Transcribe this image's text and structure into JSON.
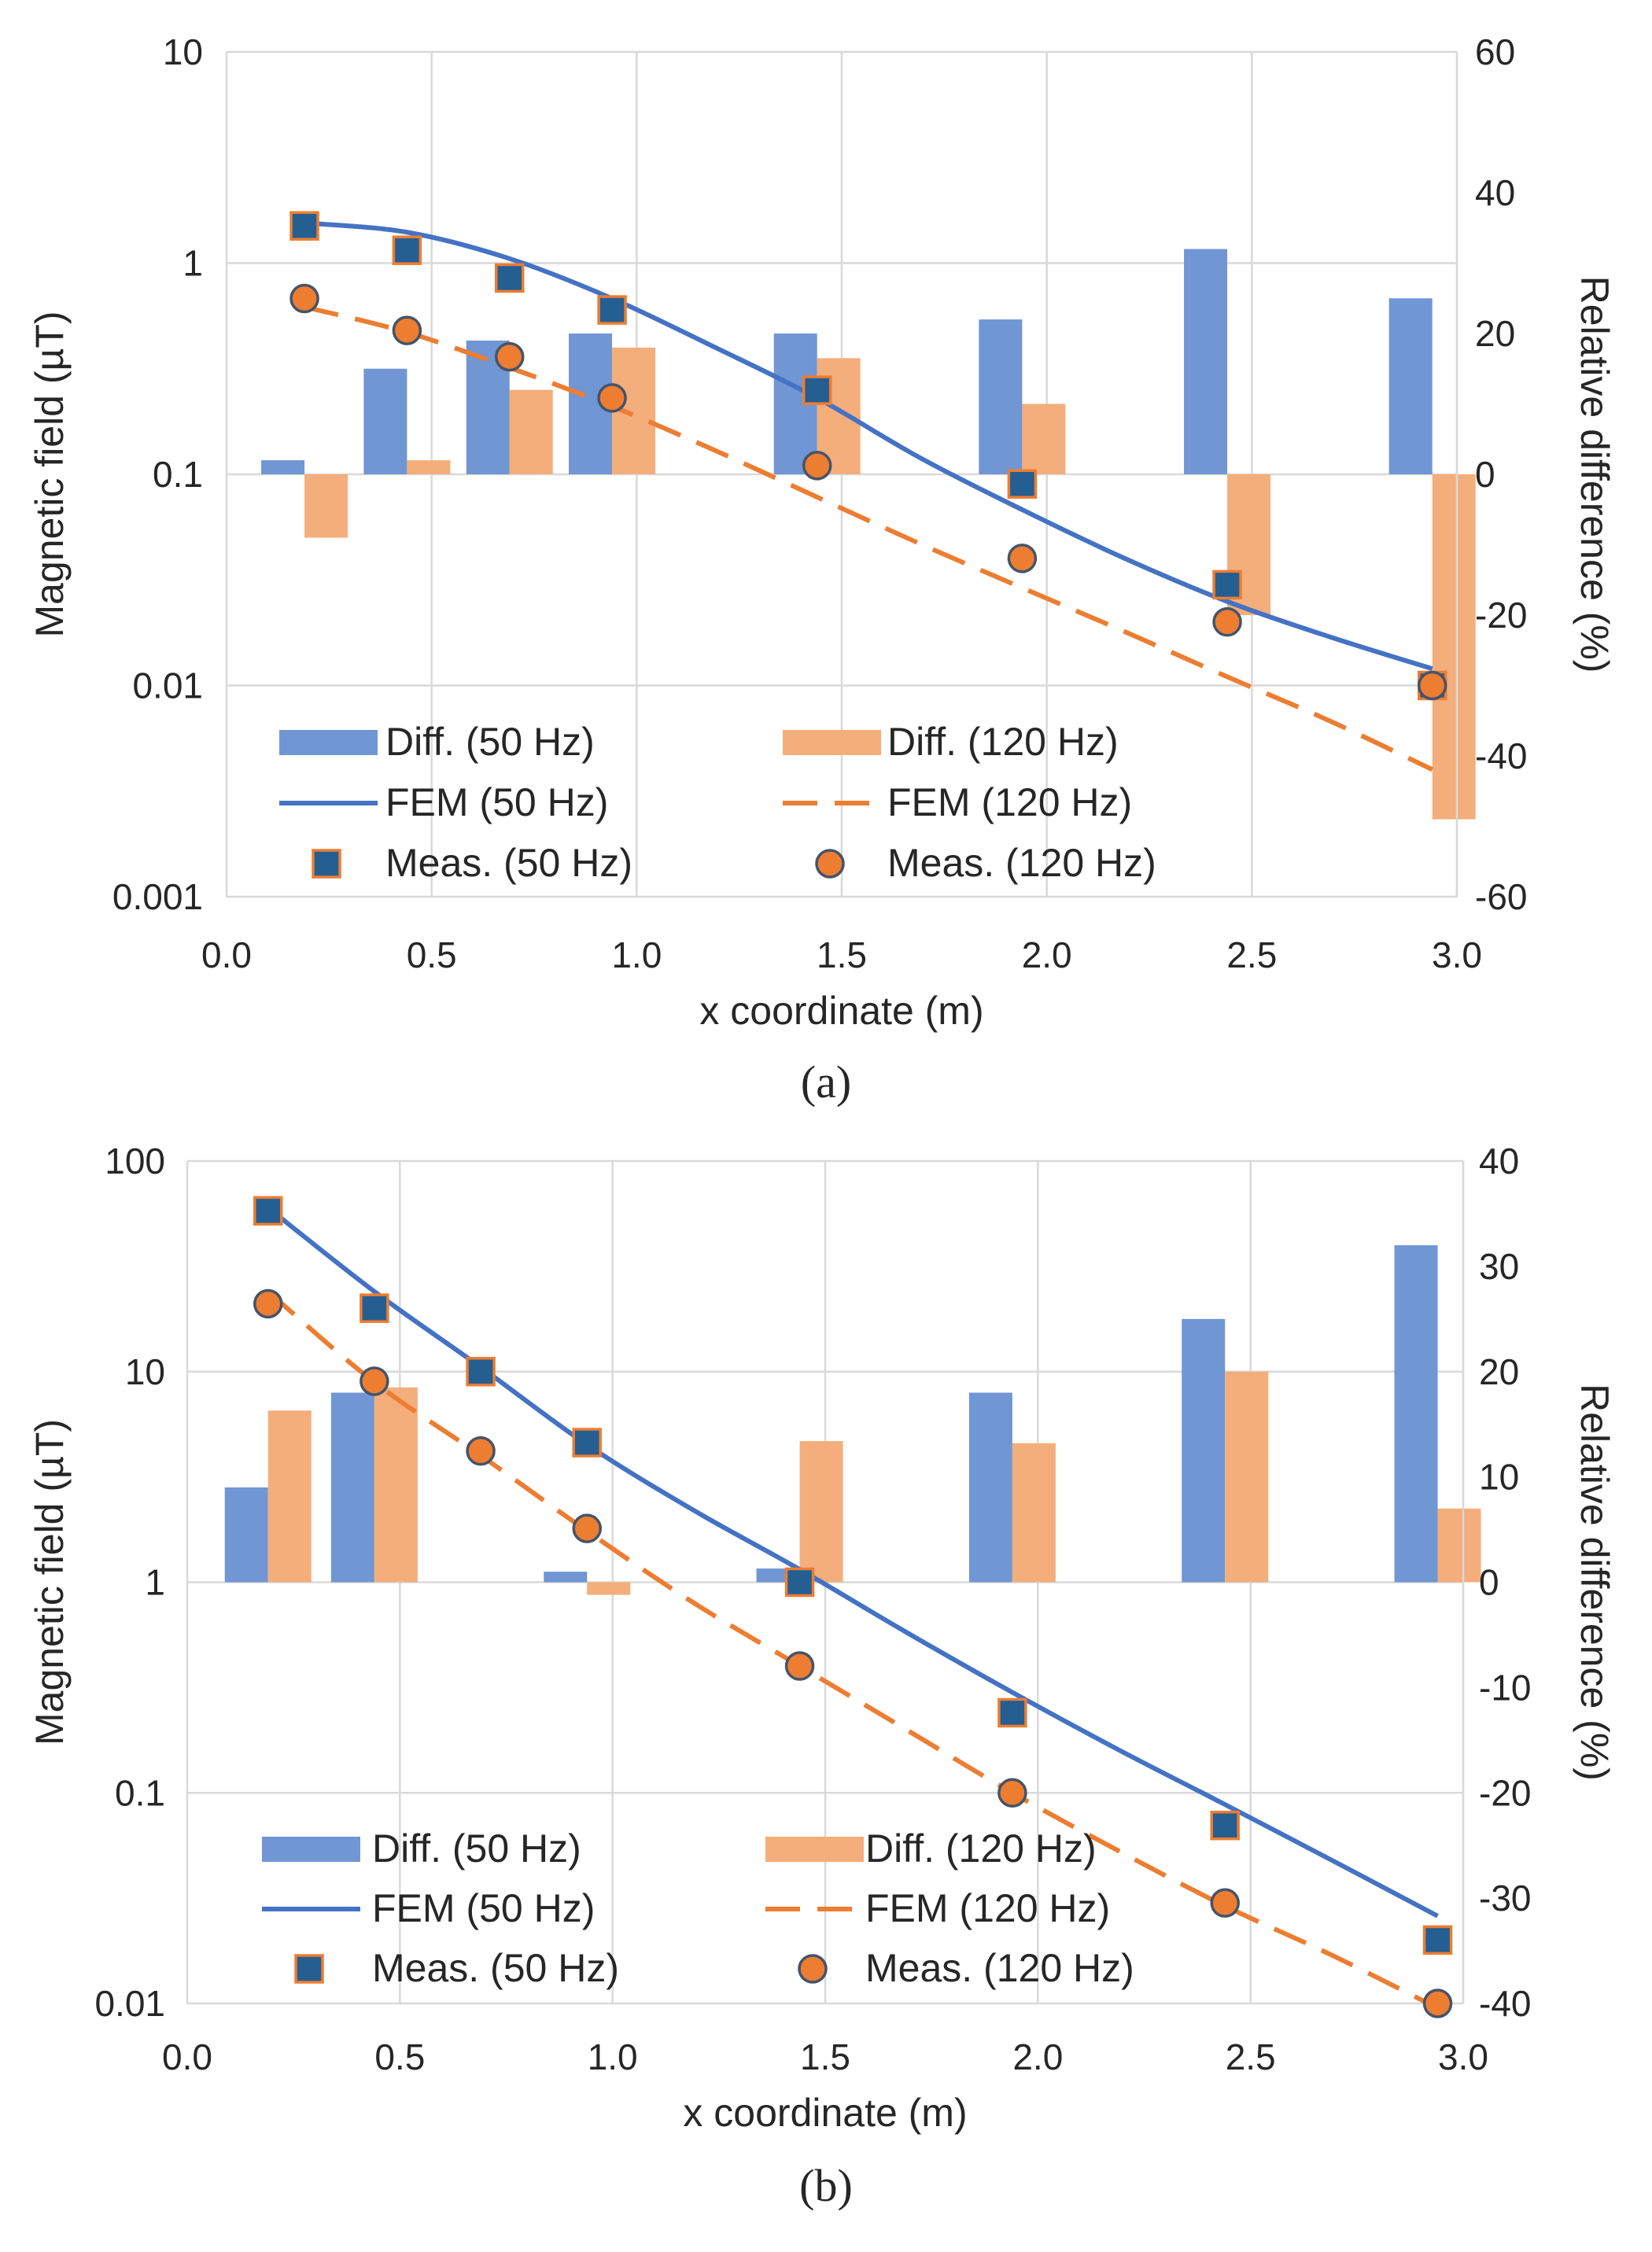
{
  "colors": {
    "diff50": "#7096D4",
    "diff120": "#F4AE7B",
    "fem50": "#4472C4",
    "fem120": "#ED7D31",
    "meas50_fill": "#255E91",
    "meas50_edge": "#ED7D31",
    "meas120_fill": "#ED7D31",
    "meas120_edge": "#44546A"
  },
  "chart_data": [
    {
      "id": "a",
      "type": "bar+line+scatter",
      "caption": "(a)",
      "xlabel": "x coordinate (m)",
      "ylabel_left": "Magnetic field (µT)",
      "ylabel_right": "Relative difference (%)",
      "xlim": [
        0.0,
        3.0
      ],
      "x_ticks": [
        "0.0",
        "0.5",
        "1.0",
        "1.5",
        "2.0",
        "2.5",
        "3.0"
      ],
      "y_left_scale": "log",
      "y_left_range": [
        0.001,
        10
      ],
      "y_left_ticks": [
        "0.001",
        "0.01",
        "0.1",
        "1",
        "10"
      ],
      "y_right_range": [
        -60,
        60
      ],
      "y_right_ticks": [
        "-60",
        "-40",
        "-20",
        "0",
        "20",
        "40",
        "60"
      ],
      "grid": true,
      "legend_position": "bottom-left",
      "legend": [
        "Diff. (50 Hz)",
        "Diff. (120 Hz)",
        "FEM (50 Hz)",
        "FEM (120 Hz)",
        "Meas. (50 Hz)",
        "Meas. (120 Hz)"
      ],
      "series": [
        {
          "name": "Diff. (50 Hz)",
          "kind": "bar",
          "axis": "right",
          "x": [
            0.19,
            0.44,
            0.69,
            0.94,
            1.44,
            1.94,
            2.44,
            2.94
          ],
          "values": [
            2,
            15,
            19,
            20,
            20,
            22,
            32,
            25
          ]
        },
        {
          "name": "Diff. (120 Hz)",
          "kind": "bar",
          "axis": "right",
          "x": [
            0.19,
            0.44,
            0.69,
            0.94,
            1.44,
            1.94,
            2.44,
            2.94
          ],
          "values": [
            -9,
            2,
            12,
            18,
            16.5,
            10,
            -20,
            -49
          ]
        },
        {
          "name": "FEM (50 Hz)",
          "kind": "line",
          "axis": "left",
          "x": [
            0.19,
            0.44,
            0.69,
            0.94,
            1.19,
            1.44,
            1.69,
            1.94,
            2.19,
            2.44,
            2.69,
            2.94
          ],
          "values": [
            1.55,
            1.4,
            1.05,
            0.68,
            0.4,
            0.23,
            0.12,
            0.068,
            0.04,
            0.025,
            0.017,
            0.012
          ]
        },
        {
          "name": "FEM (120 Hz)",
          "kind": "line",
          "axis": "left",
          "x": [
            0.19,
            0.44,
            0.69,
            0.94,
            1.19,
            1.44,
            1.69,
            1.94,
            2.19,
            2.44,
            2.69,
            2.94
          ],
          "values": [
            0.62,
            0.47,
            0.32,
            0.21,
            0.13,
            0.078,
            0.047,
            0.029,
            0.018,
            0.011,
            0.0068,
            0.004
          ]
        },
        {
          "name": "Meas. (50 Hz)",
          "kind": "scatter",
          "marker": "square",
          "axis": "left",
          "x": [
            0.19,
            0.44,
            0.69,
            0.94,
            1.44,
            1.94,
            2.44,
            2.94
          ],
          "values": [
            1.5,
            1.15,
            0.85,
            0.6,
            0.25,
            0.09,
            0.03,
            0.01
          ]
        },
        {
          "name": "Meas. (120 Hz)",
          "kind": "scatter",
          "marker": "circle",
          "axis": "left",
          "x": [
            0.19,
            0.44,
            0.69,
            0.94,
            1.44,
            1.94,
            2.44,
            2.94
          ],
          "values": [
            0.68,
            0.48,
            0.36,
            0.23,
            0.11,
            0.04,
            0.02,
            0.01
          ]
        }
      ]
    },
    {
      "id": "b",
      "type": "bar+line+scatter",
      "caption": "(b)",
      "xlabel": "x coordinate (m)",
      "ylabel_left": "Magnetic field (µT)",
      "ylabel_right": "Relative difference (%)",
      "xlim": [
        0.0,
        3.0
      ],
      "x_ticks": [
        "0.0",
        "0.5",
        "1.0",
        "1.5",
        "2.0",
        "2.5",
        "3.0"
      ],
      "y_left_scale": "log",
      "y_left_range": [
        0.01,
        100
      ],
      "y_left_ticks": [
        "0.01",
        "0.1",
        "1",
        "10",
        "100"
      ],
      "y_right_range": [
        -40,
        40
      ],
      "y_right_ticks": [
        "-40",
        "-30",
        "-20",
        "-10",
        "0",
        "10",
        "20",
        "30",
        "40"
      ],
      "grid": true,
      "legend_position": "bottom-left",
      "legend": [
        "Diff. (50 Hz)",
        "Diff. (120 Hz)",
        "FEM (50 Hz)",
        "FEM (120 Hz)",
        "Meas. (50 Hz)",
        "Meas. (120 Hz)"
      ],
      "series": [
        {
          "name": "Diff. (50 Hz)",
          "kind": "bar",
          "axis": "right",
          "x": [
            0.19,
            0.44,
            0.94,
            1.44,
            1.94,
            2.44,
            2.94
          ],
          "values": [
            9,
            18,
            1,
            1.3,
            18,
            25,
            32
          ]
        },
        {
          "name": "Diff. (120 Hz)",
          "kind": "bar",
          "axis": "right",
          "x": [
            0.19,
            0.44,
            0.94,
            1.44,
            1.94,
            2.44,
            2.94
          ],
          "values": [
            16.3,
            18.5,
            -1.2,
            13.4,
            13.2,
            20,
            7
          ]
        },
        {
          "name": "FEM (50 Hz)",
          "kind": "line",
          "axis": "left",
          "x": [
            0.19,
            0.44,
            0.69,
            0.94,
            1.19,
            1.44,
            1.69,
            1.94,
            2.19,
            2.44,
            2.69,
            2.94
          ],
          "values": [
            60,
            24,
            10.5,
            4.5,
            2.2,
            1.15,
            0.58,
            0.3,
            0.16,
            0.088,
            0.048,
            0.026
          ]
        },
        {
          "name": "FEM (120 Hz)",
          "kind": "line",
          "axis": "left",
          "x": [
            0.19,
            0.44,
            0.69,
            0.94,
            1.19,
            1.44,
            1.69,
            1.94,
            2.19,
            2.44,
            2.69,
            2.94
          ],
          "values": [
            24,
            8.9,
            4.0,
            1.75,
            0.8,
            0.4,
            0.2,
            0.1,
            0.053,
            0.029,
            0.017,
            0.0095
          ]
        },
        {
          "name": "Meas. (50 Hz)",
          "kind": "scatter",
          "marker": "square",
          "axis": "left",
          "x": [
            0.19,
            0.44,
            0.69,
            0.94,
            1.44,
            1.94,
            2.44,
            2.94
          ],
          "values": [
            58,
            20,
            10,
            4.6,
            1.0,
            0.24,
            0.07,
            0.02
          ]
        },
        {
          "name": "Meas. (120 Hz)",
          "kind": "scatter",
          "marker": "circle",
          "axis": "left",
          "x": [
            0.19,
            0.44,
            0.69,
            0.94,
            1.44,
            1.94,
            2.44,
            2.94
          ],
          "values": [
            21,
            9,
            4.2,
            1.8,
            0.4,
            0.1,
            0.03,
            0.01
          ]
        }
      ]
    }
  ]
}
